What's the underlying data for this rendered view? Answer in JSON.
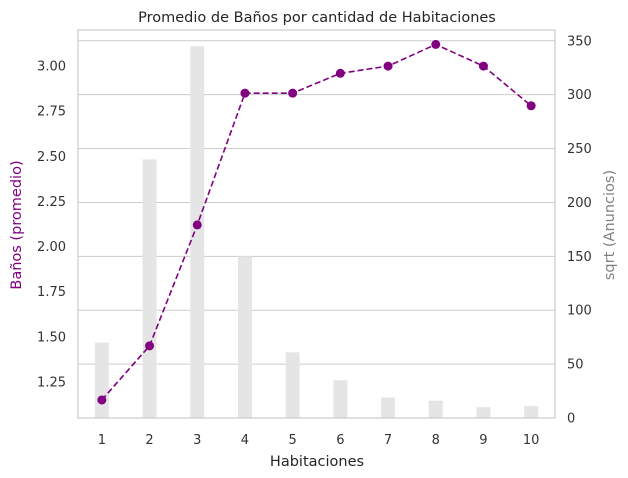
{
  "colors": {
    "line": "#800080",
    "left_axis_label": "#800080",
    "right_axis_label": "#808080",
    "bars": "#e5e5e5",
    "grid": "#cccccc",
    "spine": "#cccccc"
  },
  "chart_data": {
    "type": "bar+line",
    "title": "Promedio de Baños por cantidad de Habitaciones",
    "xlabel": "Habitaciones",
    "ylabel_left": "Baños (promedio)",
    "ylabel_right": "sqrt (Anuncios)",
    "categories": [
      "1",
      "2",
      "3",
      "4",
      "5",
      "6",
      "7",
      "8",
      "9",
      "10"
    ],
    "ylim_left": [
      1.05,
      3.2
    ],
    "ylim_right": [
      0,
      360
    ],
    "left_ticks": [
      "1.25",
      "1.50",
      "1.75",
      "2.00",
      "2.25",
      "2.50",
      "2.75",
      "3.00"
    ],
    "left_tick_values": [
      1.25,
      1.5,
      1.75,
      2.0,
      2.25,
      2.5,
      2.75,
      3.0
    ],
    "right_ticks": [
      "0",
      "50",
      "100",
      "150",
      "200",
      "250",
      "300",
      "350"
    ],
    "right_tick_values": [
      0,
      50,
      100,
      150,
      200,
      250,
      300,
      350
    ],
    "grid": "right-axis horizontal lines",
    "series": [
      {
        "axis": "left",
        "style": "dashed line with markers",
        "values": [
          1.15,
          1.45,
          2.12,
          2.85,
          2.85,
          2.96,
          3.0,
          3.12,
          3.0,
          2.78
        ]
      },
      {
        "axis": "right",
        "style": "bars",
        "values": [
          70,
          240,
          345,
          150,
          61,
          35,
          19,
          16,
          10,
          11
        ]
      }
    ]
  }
}
